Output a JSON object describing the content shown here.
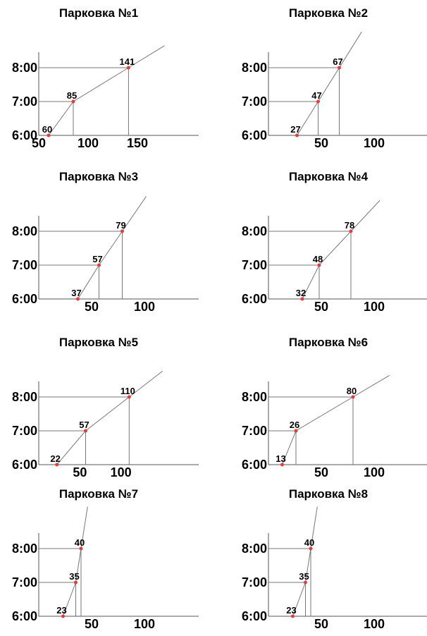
{
  "chart_data": [
    {
      "type": "line",
      "title": "Парковка №1",
      "y": [
        "6:00",
        "7:00",
        "8:00"
      ],
      "x": [
        60,
        85,
        141
      ],
      "x_ticks": [
        50,
        100,
        150
      ],
      "xlim": [
        50,
        200
      ]
    },
    {
      "type": "line",
      "title": "Парковка №2",
      "y": [
        "6:00",
        "7:00",
        "8:00"
      ],
      "x": [
        27,
        47,
        67
      ],
      "x_ticks": [
        50,
        100
      ],
      "xlim": [
        0,
        140
      ]
    },
    {
      "type": "line",
      "title": "Парковка №3",
      "y": [
        "6:00",
        "7:00",
        "8:00"
      ],
      "x": [
        37,
        57,
        79
      ],
      "x_ticks": [
        50,
        100
      ],
      "xlim": [
        0,
        140
      ]
    },
    {
      "type": "line",
      "title": "Парковка №4",
      "y": [
        "6:00",
        "7:00",
        "8:00"
      ],
      "x": [
        32,
        48,
        78
      ],
      "x_ticks": [
        50,
        100
      ],
      "xlim": [
        0,
        140
      ]
    },
    {
      "type": "line",
      "title": "Парковка №5",
      "y": [
        "6:00",
        "7:00",
        "8:00"
      ],
      "x": [
        22,
        57,
        110
      ],
      "x_ticks": [
        50,
        100
      ],
      "xlim": [
        0,
        180
      ]
    },
    {
      "type": "line",
      "title": "Парковка №6",
      "y": [
        "6:00",
        "7:00",
        "8:00"
      ],
      "x": [
        13,
        26,
        80
      ],
      "x_ticks": [
        50,
        100
      ],
      "xlim": [
        0,
        140
      ]
    },
    {
      "type": "line",
      "title": "Парковка №7",
      "y": [
        "6:00",
        "7:00",
        "8:00"
      ],
      "x": [
        23,
        35,
        40
      ],
      "x_ticks": [
        50,
        100
      ],
      "xlim": [
        0,
        140
      ]
    },
    {
      "type": "line",
      "title": "Парковка №8",
      "y": [
        "6:00",
        "7:00",
        "8:00"
      ],
      "x": [
        23,
        35,
        40
      ],
      "x_ticks": [
        50,
        100
      ],
      "xlim": [
        0,
        140
      ]
    }
  ],
  "colors": {
    "axis": "#555555",
    "line": "#777777",
    "point": "#e53b3b",
    "text": "#000000"
  }
}
